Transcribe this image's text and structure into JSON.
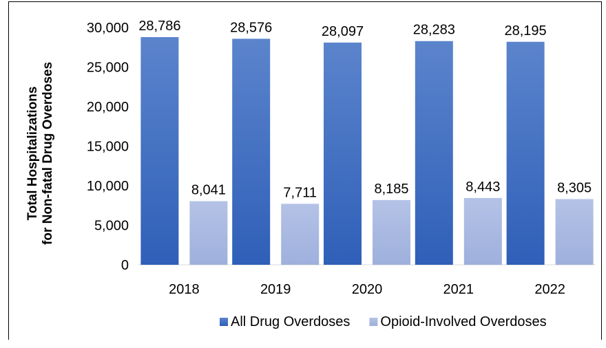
{
  "chart_data": {
    "type": "bar",
    "title": "",
    "xlabel": "",
    "ylabel_line1": "Total Hospitalizations",
    "ylabel_line2": "for Non-fatal Drug Overdoses",
    "categories": [
      "2018",
      "2019",
      "2020",
      "2021",
      "2022"
    ],
    "ylim": [
      0,
      30000
    ],
    "yticks": [
      0,
      5000,
      10000,
      15000,
      20000,
      25000,
      30000
    ],
    "ytick_labels": [
      "0",
      "5,000",
      "10,000",
      "15,000",
      "20,000",
      "25,000",
      "30,000"
    ],
    "grid": false,
    "legend_position": "bottom",
    "series": [
      {
        "name": "All Drug Overdoses",
        "values": [
          28786,
          28576,
          28097,
          28283,
          28195
        ],
        "labels": [
          "28,786",
          "28,576",
          "28,097",
          "28,283",
          "28,195"
        ],
        "color_top": "#5b84cc",
        "color_bottom": "#2f5fb8"
      },
      {
        "name": "Opioid-Involved Overdoses",
        "values": [
          8041,
          7711,
          8185,
          8443,
          8305
        ],
        "labels": [
          "8,041",
          "7,711",
          "8,185",
          "8,443",
          "8,305"
        ],
        "color_top": "#b4c2e6",
        "color_bottom": "#9eb0dc"
      }
    ]
  }
}
